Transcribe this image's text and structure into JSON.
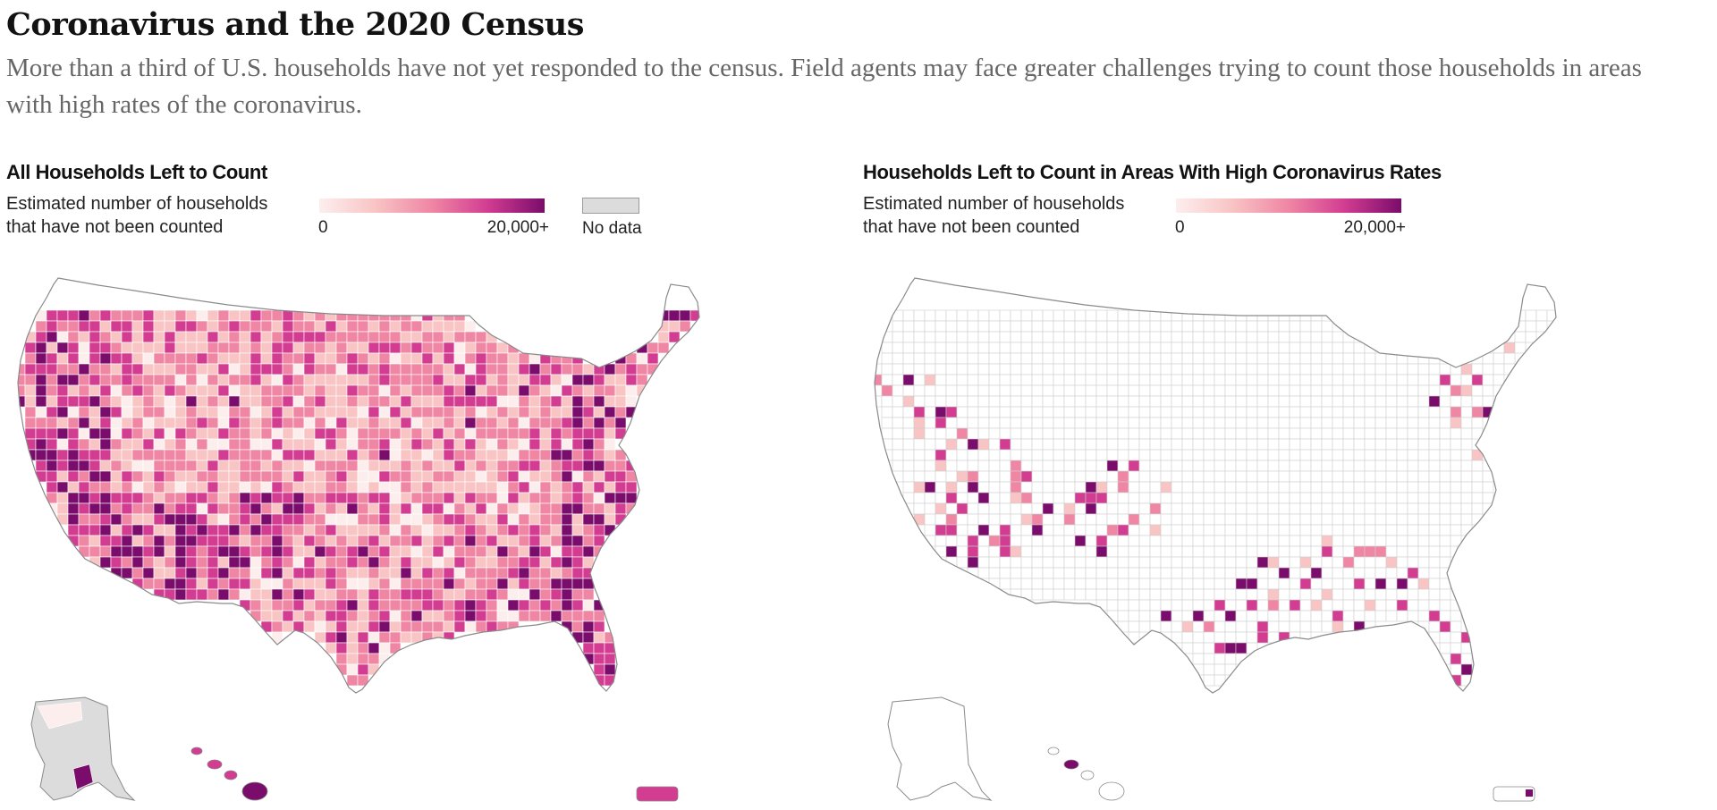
{
  "page": {
    "headline": "Coronavirus and the 2020 Census",
    "dek": "More than a third of U.S. households have not yet responded to the census. Field agents may face greater challenges trying to count those households in areas with high rates of the coronavirus."
  },
  "colors": {
    "scale": [
      "#fdeeee",
      "#f8c4c4",
      "#ef86a4",
      "#d23c91",
      "#7a0c6b"
    ],
    "no_data": "#dcdcdc",
    "county_border": "#ffffff",
    "empty_fill": "#ffffff",
    "empty_border": "#8a8a8a"
  },
  "maps": [
    {
      "title": "All Households Left to Count",
      "legend_line1": "Estimated number of households",
      "legend_line2": "that have not been counted",
      "scale_min": "0",
      "scale_max": "20,000+",
      "no_data_label": "No data",
      "shows_all_counties": true
    },
    {
      "title": "Households Left to Count in Areas With High Coronavirus Rates",
      "legend_line1": "Estimated number of households",
      "legend_line2": "that have not been counted",
      "scale_min": "0",
      "scale_max": "20,000+",
      "shows_all_counties": false
    }
  ]
}
